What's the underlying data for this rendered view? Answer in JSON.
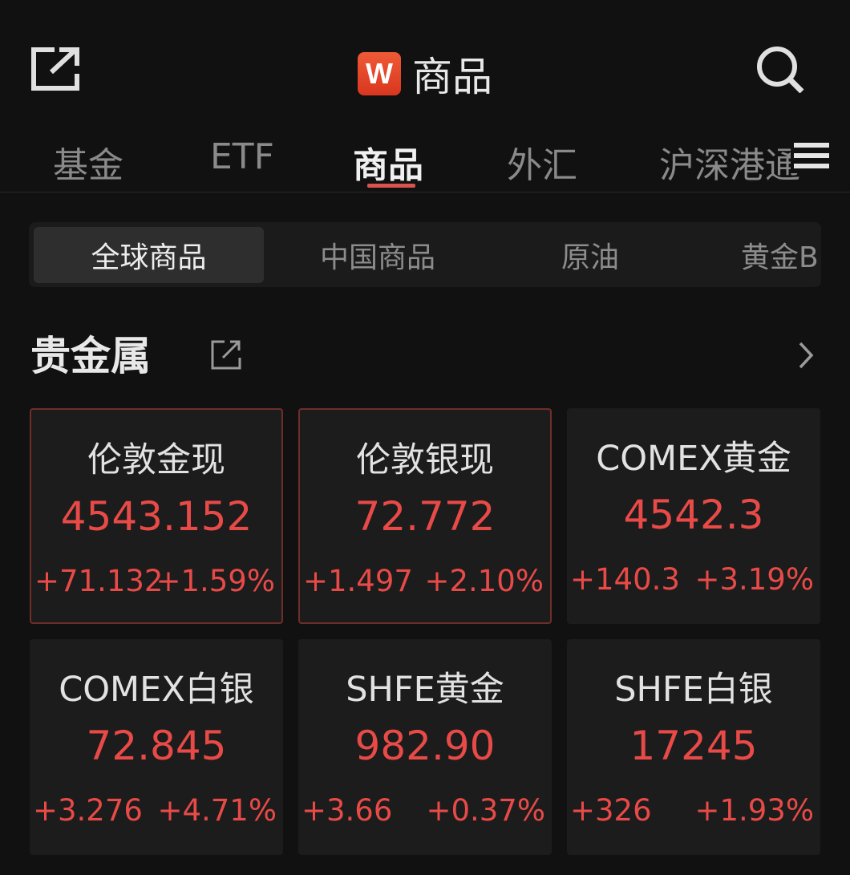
{
  "header": {
    "title": "商品",
    "logo_text": "W",
    "share_icon": "share-icon",
    "search_icon": "search-icon"
  },
  "tabs": [
    {
      "label": "基金"
    },
    {
      "label": "ETF"
    },
    {
      "label": "商品",
      "active": true
    },
    {
      "label": "外汇"
    },
    {
      "label": "沪深港通"
    }
  ],
  "segments": [
    {
      "label": "全球商品",
      "active": true
    },
    {
      "label": "中国商品"
    },
    {
      "label": "原油"
    },
    {
      "label": "黄金B"
    }
  ],
  "section": {
    "title": "贵金属"
  },
  "colors": {
    "up": "#e84a47",
    "accent": "#d9534f",
    "background": "#111111",
    "card": "#1c1c1c"
  },
  "cards": [
    {
      "name": "伦敦金现",
      "price": "4543.152",
      "change": "+71.132",
      "pct": "+1.59%",
      "highlighted": true
    },
    {
      "name": "伦敦银现",
      "price": "72.772",
      "change": "+1.497",
      "pct": "+2.10%",
      "highlighted": true
    },
    {
      "name": "COMEX黄金",
      "price": "4542.3",
      "change": "+140.3",
      "pct": "+3.19%"
    },
    {
      "name": "COMEX白银",
      "price": "72.845",
      "change": "+3.276",
      "pct": "+4.71%"
    },
    {
      "name": "SHFE黄金",
      "price": "982.90",
      "change": "+3.66",
      "pct": "+0.37%"
    },
    {
      "name": "SHFE白银",
      "price": "17245",
      "change": "+326",
      "pct": "+1.93%"
    }
  ]
}
